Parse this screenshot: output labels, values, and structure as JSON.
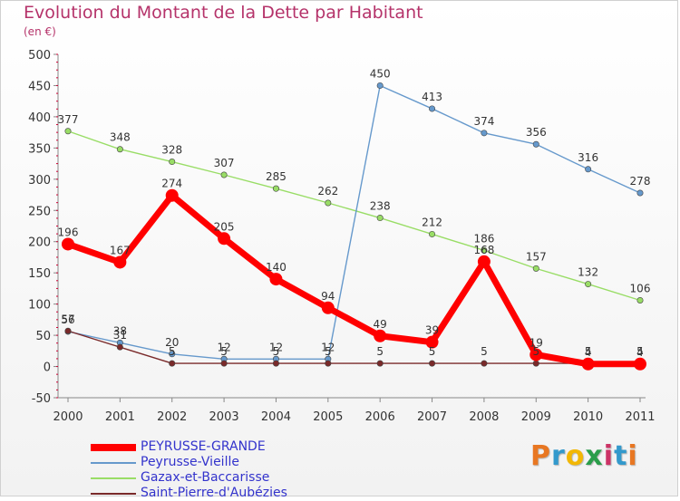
{
  "title": "Evolution du Montant de la Dette par Habitant",
  "subtitle": "(en €)",
  "logo_text": "Proxiti",
  "colors": {
    "title": "#b5336a",
    "axis": "#888888",
    "tick_text": "#333333",
    "grid": "#dddddd",
    "tick_mark": "#cc0033"
  },
  "chart_data": {
    "type": "line",
    "x": [
      "2000",
      "2001",
      "2002",
      "2003",
      "2004",
      "2005",
      "2006",
      "2007",
      "2008",
      "2009",
      "2010",
      "2011"
    ],
    "ylim": [
      -50,
      500
    ],
    "yticks": [
      -50,
      0,
      50,
      100,
      150,
      200,
      250,
      300,
      350,
      400,
      450,
      500
    ],
    "grid": false,
    "legend_position": "bottom-left",
    "series": [
      {
        "name": "PEYRUSSE-GRANDE",
        "color": "#ff0000",
        "legend_color": "#3333cc",
        "values": [
          196,
          167,
          274,
          205,
          140,
          94,
          49,
          39,
          168,
          19,
          4,
          4
        ],
        "labels": [
          "196",
          "167",
          "274",
          "205",
          "140",
          "94",
          "49",
          "39",
          "168",
          "19",
          "4",
          "4"
        ]
      },
      {
        "name": "Peyrusse-Vieille",
        "color": "#6699cc",
        "legend_color": "#3333cc",
        "values": [
          56,
          38,
          20,
          12,
          12,
          12,
          450,
          413,
          374,
          356,
          316,
          278
        ],
        "labels": [
          "56",
          "38",
          "20",
          "12",
          "12",
          "12",
          "450",
          "413",
          "374",
          "356",
          "316",
          "278"
        ]
      },
      {
        "name": "Gazax-et-Baccarisse",
        "color": "#99dd66",
        "legend_color": "#3333cc",
        "values": [
          377,
          348,
          328,
          307,
          285,
          262,
          238,
          212,
          186,
          157,
          132,
          106
        ],
        "labels": [
          "377",
          "348",
          "328",
          "307",
          "285",
          "262",
          "238",
          "212",
          "186",
          "157",
          "132",
          "106"
        ]
      },
      {
        "name": "Saint-Pierre-d'Aubézies",
        "color": "#7a2a2a",
        "legend_color": "#3333cc",
        "values": [
          57,
          31,
          5,
          5,
          5,
          5,
          5,
          5,
          5,
          5,
          5,
          5
        ],
        "labels": [
          "57",
          "31",
          "5",
          "5",
          "5",
          "5",
          "5",
          "5",
          "5",
          "5",
          "5",
          "5"
        ]
      }
    ]
  }
}
